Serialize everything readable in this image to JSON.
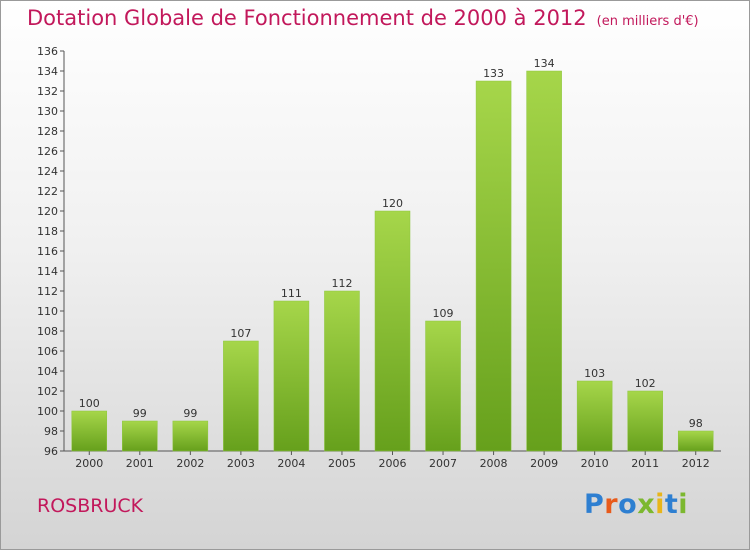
{
  "header": {
    "title": "Dotation Globale de Fonctionnement de 2000 à 2012",
    "subtitle": "(en milliers d'€)"
  },
  "footer": {
    "commune": "ROSBRUCK",
    "brand": "Proxiti"
  },
  "colors": {
    "title": "#c2185b",
    "bar_light": "#a6d64a",
    "bar_dark": "#66a01c",
    "brand_letters": [
      "#2e7fd1",
      "#e85a1a",
      "#2e7fd1",
      "#7cb82f",
      "#e8b51a",
      "#2e7fd1",
      "#7cb82f"
    ]
  },
  "chart_data": {
    "type": "bar",
    "categories": [
      "2000",
      "2001",
      "2002",
      "2003",
      "2004",
      "2005",
      "2006",
      "2007",
      "2008",
      "2009",
      "2010",
      "2011",
      "2012"
    ],
    "values": [
      100,
      99,
      99,
      107,
      111,
      112,
      120,
      109,
      133,
      134,
      103,
      102,
      98
    ],
    "ylim": [
      96,
      136
    ],
    "yticks": [
      96,
      98,
      100,
      102,
      104,
      106,
      108,
      110,
      112,
      114,
      116,
      118,
      120,
      122,
      124,
      126,
      128,
      130,
      132,
      134,
      136
    ],
    "grid": false,
    "legend": "none"
  }
}
